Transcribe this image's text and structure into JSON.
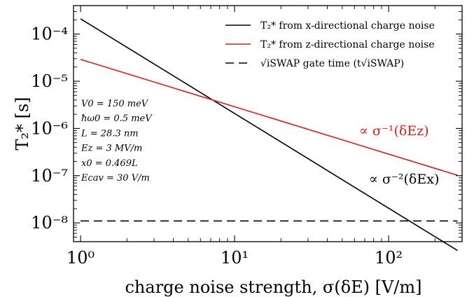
{
  "chart_data": {
    "type": "line",
    "xlabel": "charge noise strength, σ(δE) [V/m]",
    "ylabel": "T₂* [s]",
    "xscale": "log",
    "yscale": "log",
    "xlim": [
      0.9,
      300
    ],
    "ylim": [
      4e-09,
      0.0004
    ],
    "xticks": [
      1,
      10,
      100
    ],
    "xtick_labels": [
      "10⁰",
      "10¹",
      "10²"
    ],
    "yticks": [
      1e-08,
      1e-07,
      1e-06,
      1e-05,
      0.0001
    ],
    "ytick_labels": [
      "10⁻⁸",
      "10⁻⁷",
      "10⁻⁶",
      "10⁻⁵",
      "10⁻⁴"
    ],
    "grid": false,
    "legend_position": "top-right",
    "series": [
      {
        "name": "T₂* from x-directional charge noise",
        "color": "#000000",
        "dash": "solid",
        "x": [
          1,
          280
        ],
        "y": [
          0.00021,
          2.6e-09
        ]
      },
      {
        "name": "T₂* from z-directional charge noise",
        "color": "#e31a1c",
        "dash": "solid",
        "x": [
          1,
          280
        ],
        "y": [
          2.9e-05,
          1.02e-07
        ]
      },
      {
        "name": "√iSWAP gate time (t√iSWAP)",
        "color": "#000000",
        "dash": "dashed",
        "x": [
          1,
          280
        ],
        "y": [
          1.1e-08,
          1.1e-08
        ]
      }
    ],
    "annotations": [
      {
        "text": "∝ σ⁻¹(δEz)",
        "color": "#e31a1c"
      },
      {
        "text": "∝ σ⁻²(δEx)",
        "color": "#000000"
      }
    ],
    "parameters": [
      "V0 = 150 meV",
      "ħω0 = 0.5 meV",
      "L = 28.3 nm",
      "Ez = 3 MV/m",
      "x0 = 0.469L",
      "Ecav = 30 V/m"
    ]
  }
}
